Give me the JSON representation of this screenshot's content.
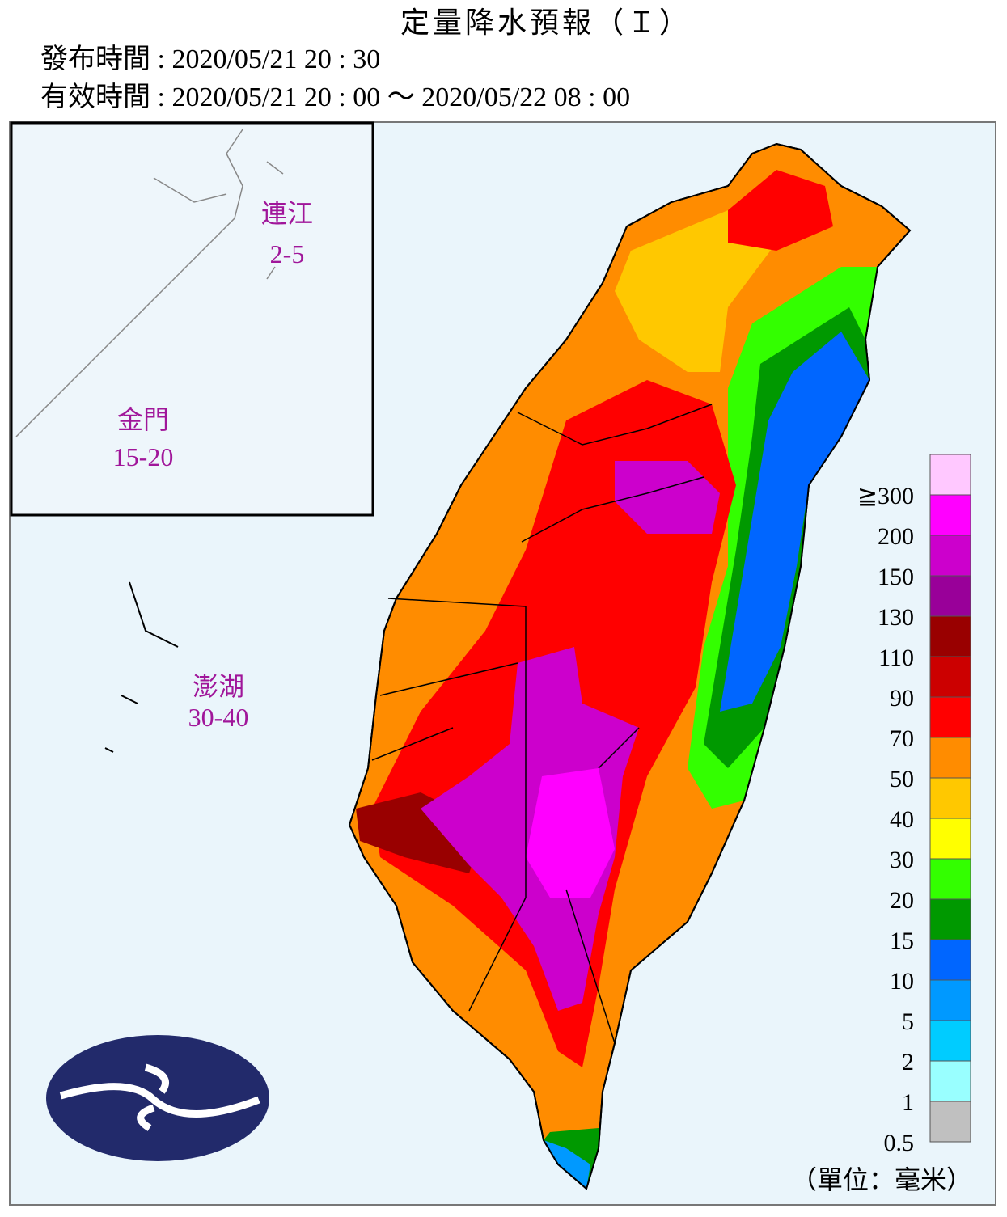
{
  "header": {
    "title": "定量降水預報（Ｉ）",
    "issued": "發布時間 : 2020/05/21 20 : 30",
    "valid": "有效時間 : 2020/05/21 20 : 00 ～ 2020/05/22 08 : 00"
  },
  "islands": [
    {
      "name": "連江",
      "range": "2-5"
    },
    {
      "name": "金門",
      "range": "15-20"
    },
    {
      "name": "澎湖",
      "range": "30-40"
    }
  ],
  "legend": {
    "colors": [
      "#ffc8ff",
      "#ff00ff",
      "#cc00cc",
      "#990099",
      "#990000",
      "#cc0000",
      "#ff0000",
      "#ff8c00",
      "#ffc800",
      "#ffff00",
      "#33ff00",
      "#009900",
      "#0066ff",
      "#0099ff",
      "#00ccff",
      "#99ffff",
      "#c0c0c0"
    ],
    "labels": [
      "≧300",
      "200",
      "150",
      "130",
      "110",
      "90",
      "70",
      "50",
      "40",
      "30",
      "20",
      "15",
      "10",
      "5",
      "2",
      "1",
      "0.5"
    ],
    "unit": "（單位：毫米）"
  }
}
